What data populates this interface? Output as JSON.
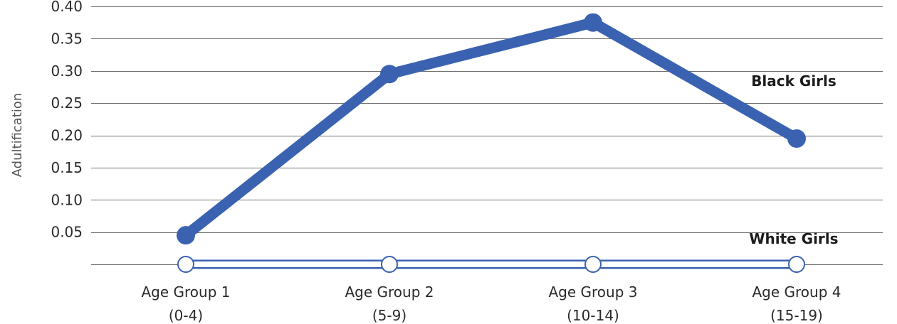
{
  "chart_data": {
    "type": "line",
    "title": "",
    "xlabel": "",
    "ylabel": "Adultification",
    "categories": [
      [
        "Age Group 1",
        "(0-4)"
      ],
      [
        "Age Group 2",
        "(5-9)"
      ],
      [
        "Age Group 3",
        "(10-14)"
      ],
      [
        "Age Group 4",
        "(15-19)"
      ]
    ],
    "yticks": [
      "0.05",
      "0.10",
      "0.15",
      "0.20",
      "0.25",
      "0.30",
      "0.35",
      "0.40"
    ],
    "ylim": [
      0.0,
      0.4
    ],
    "grid": true,
    "series": [
      {
        "name": "Black Girls",
        "values": [
          0.045,
          0.295,
          0.375,
          0.195
        ],
        "color": "#3a62b0",
        "marker": "filled"
      },
      {
        "name": "White Girls",
        "values": [
          0.0,
          0.0,
          0.0,
          0.0
        ],
        "color": "#3a62b0",
        "marker": "hollow"
      }
    ]
  }
}
